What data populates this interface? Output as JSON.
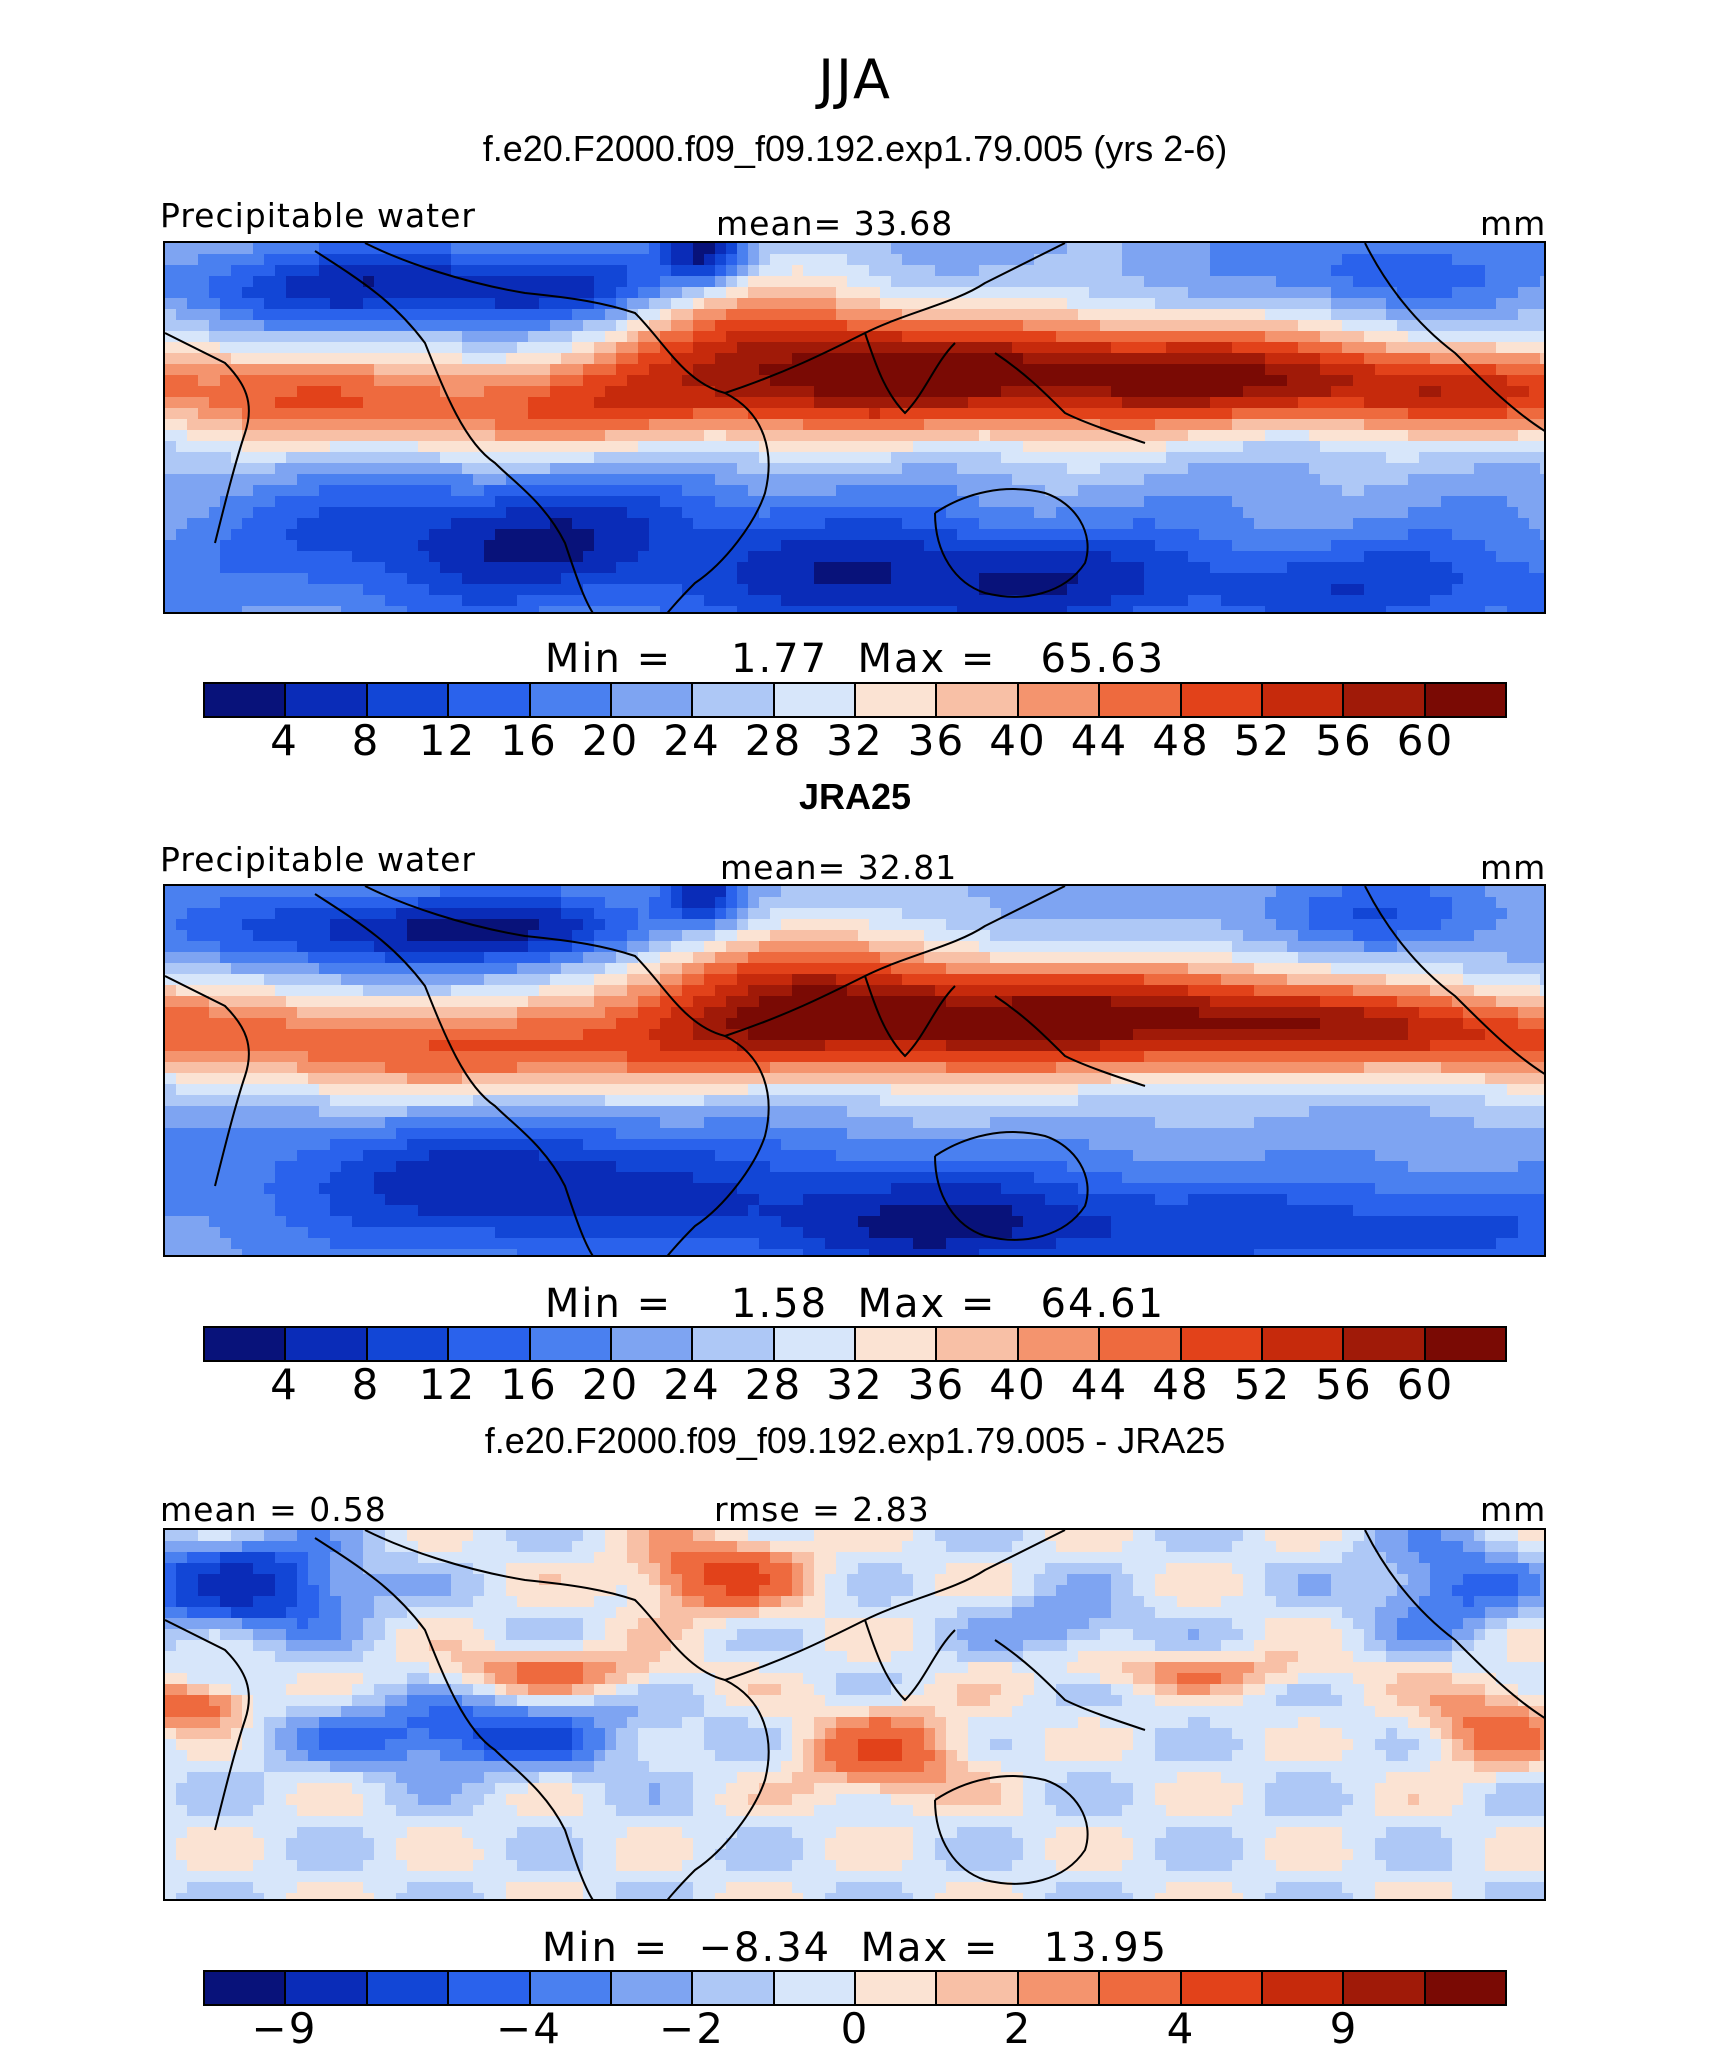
{
  "figure": {
    "season": "JJA"
  },
  "palette": {
    "full": [
      "#08127a",
      "#0a2cb8",
      "#1246d6",
      "#2a62ec",
      "#4a80f0",
      "#7ea4f2",
      "#aec8f6",
      "#d7e6fa",
      "#fbe3d3",
      "#f8c0a6",
      "#f4946e",
      "#ee6a3e",
      "#e2421a",
      "#c62a0c",
      "#a01a08",
      "#7a0a04"
    ],
    "diff": [
      "#08127a",
      "#0a2cb8",
      "#1246d6",
      "#2a62ec",
      "#4a80f0",
      "#7ea4f2",
      "#aec8f6",
      "#d7e6fa",
      "#fbe3d3",
      "#f8c0a6",
      "#f4946e",
      "#ee6a3e",
      "#e2421a",
      "#c62a0c",
      "#a01a08",
      "#7a0a04"
    ],
    "land_outline": "#000000"
  },
  "panels": [
    {
      "title": "f.e20.F2000.f09_f09.192.exp1.79.005 (yrs 2-6)",
      "title_bold": false,
      "left_label": "Precipitable water",
      "center_label": "mean=   33.68",
      "right_label": "mm",
      "minmax": "Min =    1.77  Max =   65.63",
      "ticks": [
        "4",
        "8",
        "12",
        "16",
        "20",
        "24",
        "28",
        "32",
        "36",
        "40",
        "44",
        "48",
        "52",
        "56",
        "60"
      ]
    },
    {
      "title": "JRA25",
      "title_bold": true,
      "left_label": "Precipitable water",
      "center_label": "mean=   32.81",
      "right_label": "mm",
      "minmax": "Min =    1.58  Max =   64.61",
      "ticks": [
        "4",
        "8",
        "12",
        "16",
        "20",
        "24",
        "28",
        "32",
        "36",
        "40",
        "44",
        "48",
        "52",
        "56",
        "60"
      ]
    },
    {
      "title": "f.e20.F2000.f09_f09.192.exp1.79.005 - JRA25",
      "title_bold": false,
      "left_label": "mean =    0.58",
      "center_label": "rmse =    2.83",
      "right_label": "mm",
      "minmax": "Min =  −8.34  Max =   13.95",
      "ticks": [
        "−9",
        "−4",
        "−2",
        "0",
        "2",
        "4",
        "9"
      ]
    }
  ],
  "chart_data": {
    "type": "heatmap",
    "variable": "Precipitable water",
    "units": "mm",
    "season": "JJA",
    "panels": [
      {
        "name": "f.e20.F2000.f09_f09.192.exp1.79.005 (yrs 2-6)",
        "mean": 33.68,
        "min": 1.77,
        "max": 65.63,
        "contour_levels": [
          4,
          8,
          12,
          16,
          20,
          24,
          28,
          32,
          36,
          40,
          44,
          48,
          52,
          56,
          60
        ]
      },
      {
        "name": "JRA25",
        "mean": 32.81,
        "min": 1.58,
        "max": 64.61,
        "contour_levels": [
          4,
          8,
          12,
          16,
          20,
          24,
          28,
          32,
          36,
          40,
          44,
          48,
          52,
          56,
          60
        ]
      },
      {
        "name": "f.e20.F2000.f09_f09.192.exp1.79.005 - JRA25",
        "mean": 0.58,
        "rmse": 2.83,
        "min": -8.34,
        "max": 13.95,
        "contour_levels": [
          -9,
          -4,
          -2,
          0,
          2,
          4,
          9
        ]
      }
    ]
  }
}
